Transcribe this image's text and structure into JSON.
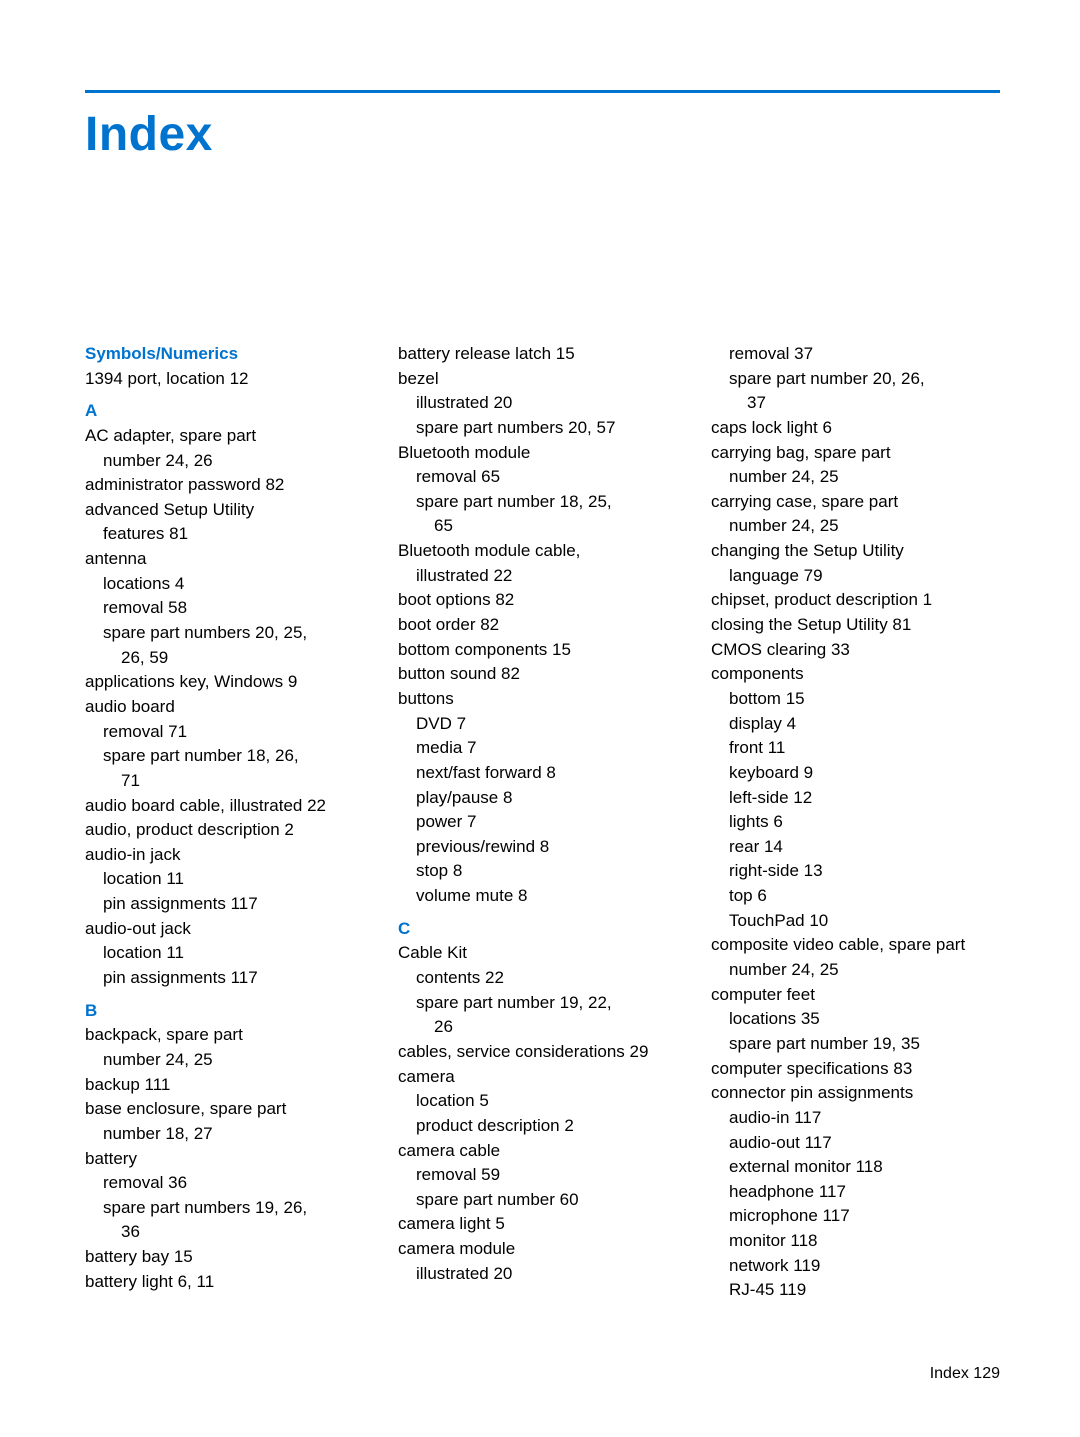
{
  "title": "Index",
  "footer_label": "Index",
  "footer_page": "129",
  "colors": {
    "accent": "#0073cf",
    "text": "#000000",
    "bg": "#ffffff"
  },
  "typography": {
    "title_fontsize": 48,
    "body_fontsize": 17,
    "line_height": 1.45
  },
  "col1": {
    "h1": "Symbols/Numerics",
    "e1": "1394 port, location   12",
    "h2": "A",
    "e2": "AC adapter, spare part",
    "e2s": "number   24, 26",
    "e3": "administrator password   82",
    "e4": "advanced Setup Utility",
    "e4s": "features   81",
    "e5": "antenna",
    "e5a": "locations   4",
    "e5b": "removal   58",
    "e5c": "spare part numbers   20, 25,",
    "e5c2": "26, 59",
    "e6": "applications key, Windows   9",
    "e7": "audio board",
    "e7a": "removal   71",
    "e7b": "spare part number   18, 26,",
    "e7b2": "71",
    "e8": "audio board cable, illustrated   22",
    "e9": "audio, product description   2",
    "e10": "audio-in jack",
    "e10a": "location   11",
    "e10b": "pin assignments   117",
    "e11": "audio-out jack",
    "e11a": "location   11",
    "e11b": "pin assignments   117",
    "h3": "B",
    "e12": "backpack, spare part",
    "e12s": "number   24, 25",
    "e13": "backup   111",
    "e14": "base enclosure, spare part",
    "e14s": "number   18, 27",
    "e15": "battery",
    "e15a": "removal   36",
    "e15b": "spare part numbers   19, 26,",
    "e15b2": "36",
    "e16": "battery bay   15",
    "e17": "battery light   6, 11"
  },
  "col2": {
    "e1": "battery release latch   15",
    "e2": "bezel",
    "e2a": "illustrated   20",
    "e2b": "spare part numbers   20, 57",
    "e3": "Bluetooth module",
    "e3a": "removal   65",
    "e3b": "spare part number   18, 25,",
    "e3b2": "65",
    "e4": "Bluetooth module cable,",
    "e4s": "illustrated   22",
    "e5": "boot options   82",
    "e6": "boot order   82",
    "e7": "bottom components   15",
    "e8": "button sound   82",
    "e9": "buttons",
    "e9a": "DVD   7",
    "e9b": "media   7",
    "e9c": "next/fast forward   8",
    "e9d": "play/pause   8",
    "e9e": "power   7",
    "e9f": "previous/rewind   8",
    "e9g": "stop   8",
    "e9h": "volume mute   8",
    "h1": "C",
    "e10": "Cable Kit",
    "e10a": "contents   22",
    "e10b": "spare part number   19, 22,",
    "e10b2": "26",
    "e11": "cables, service considerations   29",
    "e12": "camera",
    "e12a": "location   5",
    "e12b": "product description   2",
    "e13": "camera cable",
    "e13a": "removal   59",
    "e13b": "spare part number   60",
    "e14": "camera light   5",
    "e15": "camera module",
    "e15a": "illustrated   20"
  },
  "col3": {
    "e1a": "removal   37",
    "e1b": "spare part number   20, 26,",
    "e1b2": "37",
    "e2": "caps lock light   6",
    "e3": "carrying bag, spare part",
    "e3s": "number   24, 25",
    "e4": "carrying case, spare part",
    "e4s": "number   24, 25",
    "e5": "changing the Setup Utility",
    "e5s": "language   79",
    "e6": "chipset, product description   1",
    "e7": "closing the Setup Utility   81",
    "e8": "CMOS clearing   33",
    "e9": "components",
    "e9a": "bottom   15",
    "e9b": "display   4",
    "e9c": "front   11",
    "e9d": "keyboard   9",
    "e9e": "left-side   12",
    "e9f": "lights   6",
    "e9g": "rear   14",
    "e9h": "right-side   13",
    "e9i": "top   6",
    "e9j": "TouchPad   10",
    "e10": "composite video cable, spare part",
    "e10s": "number   24, 25",
    "e11": "computer feet",
    "e11a": "locations   35",
    "e11b": "spare part number   19, 35",
    "e12": "computer specifications   83",
    "e13": "connector pin assignments",
    "e13a": "audio-in   117",
    "e13b": "audio-out   117",
    "e13c": "external monitor   118",
    "e13d": "headphone   117",
    "e13e": "microphone   117",
    "e13f": "monitor   118",
    "e13g": "network   119",
    "e13h": "RJ-45   119"
  }
}
